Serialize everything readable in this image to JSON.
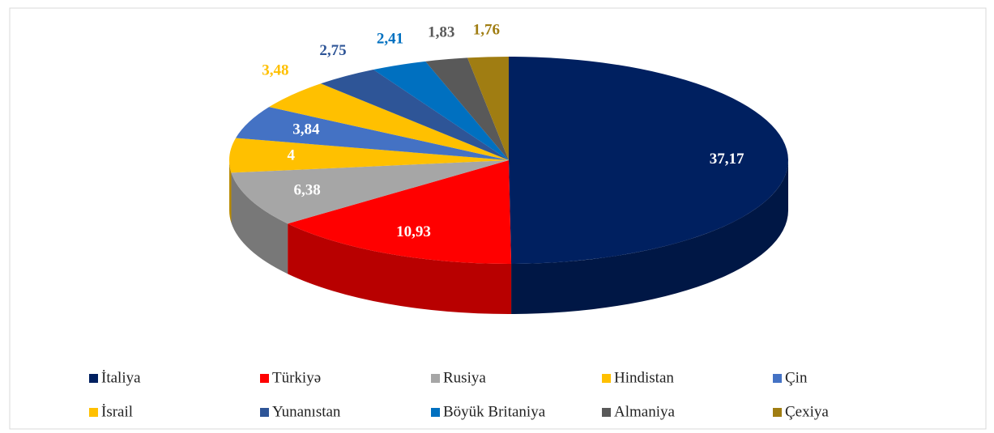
{
  "chart_data": {
    "type": "pie3d",
    "categories": [
      "İtaliya",
      "Türkiyə",
      "Rusiya",
      "Hindistan",
      "Çin",
      "İsrail",
      "Yunanıstan",
      "Böyük Britaniya",
      "Almaniya",
      "Çexiya"
    ],
    "values": [
      37.17,
      10.93,
      6.38,
      4,
      3.84,
      3.48,
      2.75,
      2.41,
      1.83,
      1.76
    ],
    "value_labels": [
      "37,17",
      "10,93",
      "6,38",
      "4",
      "3,84",
      "3,48",
      "2,75",
      "2,41",
      "1,83",
      "1,76"
    ],
    "colors": [
      "#002060",
      "#ff0000",
      "#a6a6a6",
      "#ffc000",
      "#4472c4",
      "#ffc000",
      "#2e5597",
      "#0070c0",
      "#595959",
      "#a07d12"
    ],
    "legend": "bottom"
  }
}
